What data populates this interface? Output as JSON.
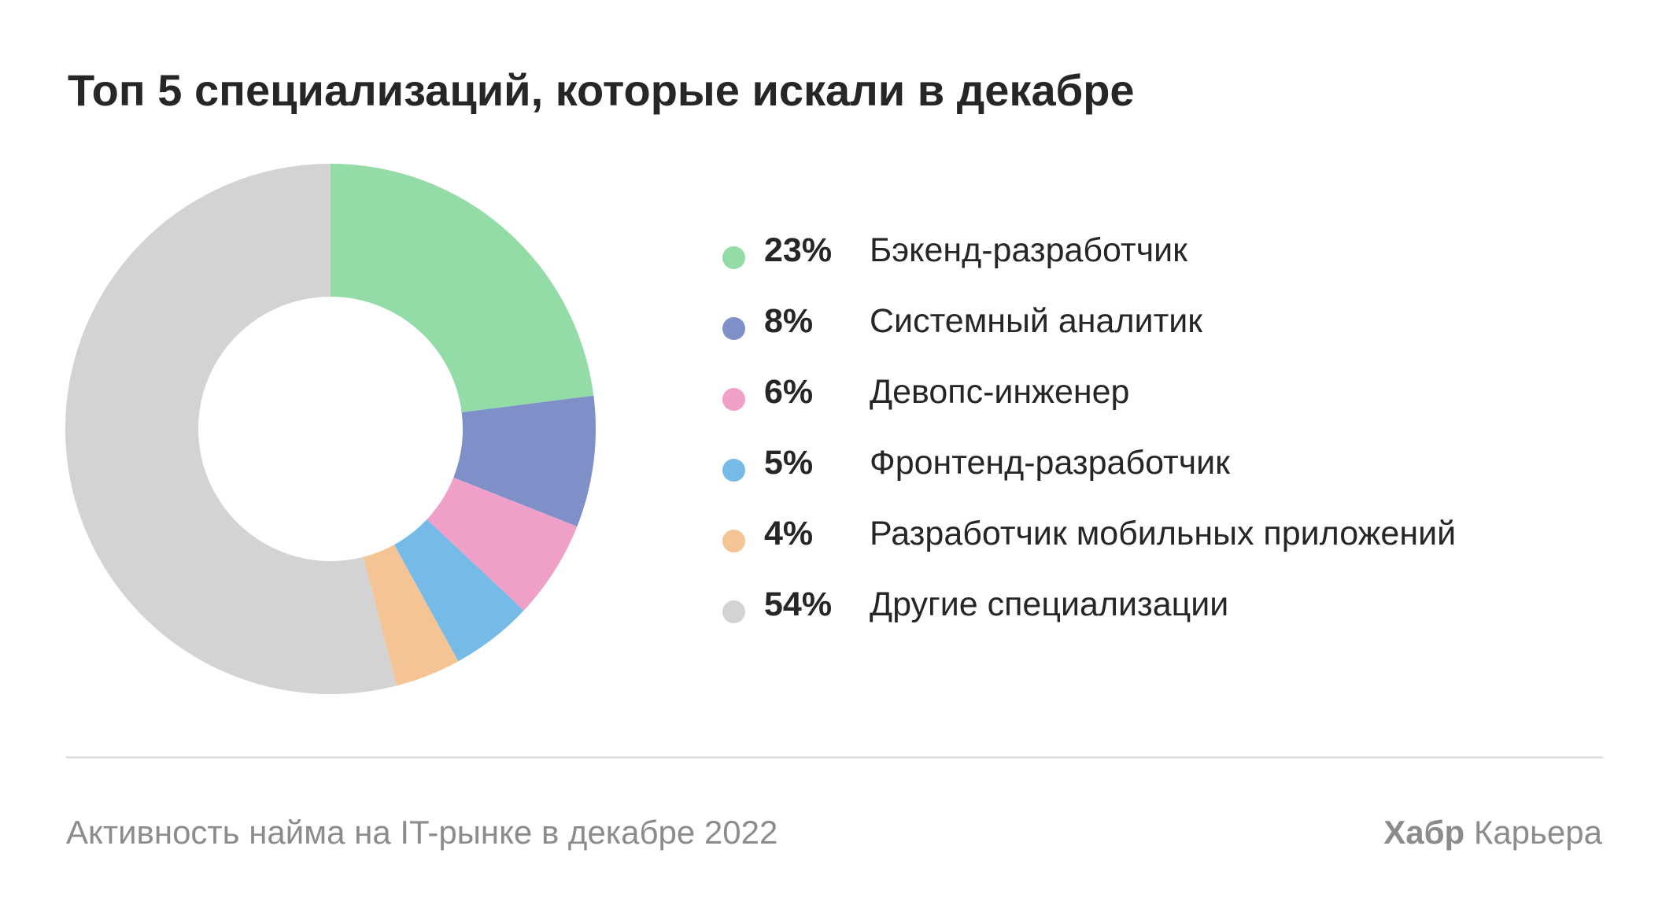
{
  "title": "Топ 5 специализаций, которые искали в декабре",
  "chart_data": {
    "type": "pie",
    "title": "Топ 5 специализаций, которые искали в декабре",
    "donut": true,
    "legend_position": "right",
    "series": [
      {
        "label": "Бэкенд-разработчик",
        "value": 23,
        "display": "23%",
        "color": "#93dca8"
      },
      {
        "label": "Системный аналитик",
        "value": 8,
        "display": "8%",
        "color": "#7f90c9"
      },
      {
        "label": "Девопс-инженер",
        "value": 6,
        "display": "6%",
        "color": "#ef9fc8"
      },
      {
        "label": "Фронтенд-разработчик",
        "value": 5,
        "display": "5%",
        "color": "#76bbe8"
      },
      {
        "label": "Разработчик мобильных приложений",
        "value": 4,
        "display": "4%",
        "color": "#f5c494"
      },
      {
        "label": "Другие специализации",
        "value": 54,
        "display": "54%",
        "color": "#d3d3d3"
      }
    ]
  },
  "footer": {
    "caption": "Активность найма на IT-рынке в декабре 2022",
    "brand_bold": "Хабр",
    "brand_regular": " Карьера"
  }
}
